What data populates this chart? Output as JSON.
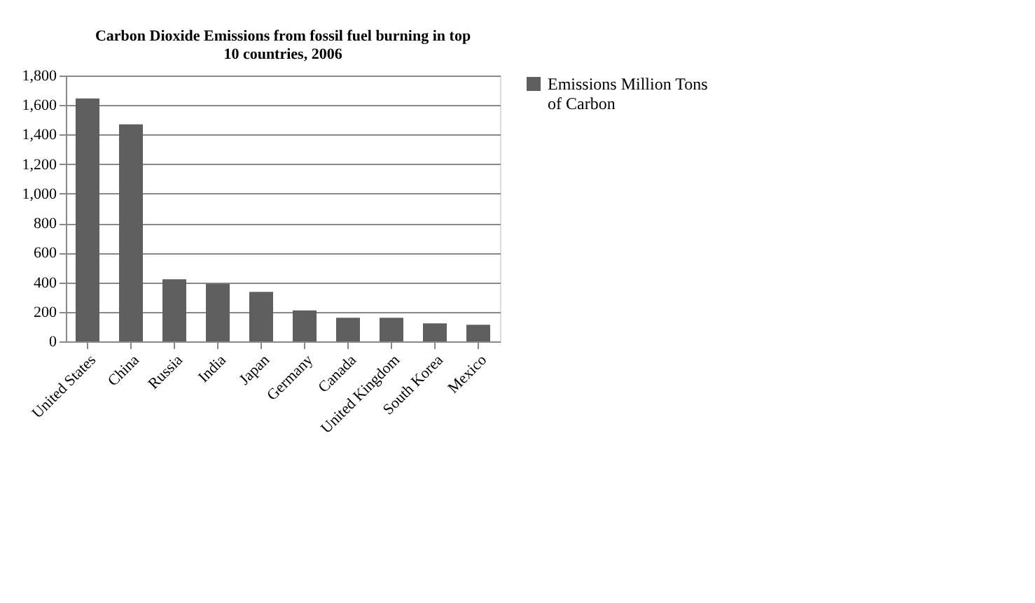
{
  "chart_data": {
    "type": "bar",
    "title": "Carbon Dioxide Emissions from fossil fuel burning in top 10 countries, 2006",
    "categories": [
      "United States",
      "China",
      "Russia",
      "India",
      "Japan",
      "Germany",
      "Canada",
      "United Kingdom",
      "South Korea",
      "Mexico"
    ],
    "series": [
      {
        "name": "Emissions Million Tons of Carbon",
        "color": "#5f5f5f",
        "values": [
          1645,
          1470,
          420,
          390,
          335,
          210,
          160,
          160,
          122,
          112
        ]
      }
    ],
    "ylim": [
      0,
      1800
    ],
    "yticks": [
      {
        "value": 0,
        "label": "0"
      },
      {
        "value": 200,
        "label": "200"
      },
      {
        "value": 400,
        "label": "400"
      },
      {
        "value": 600,
        "label": "600"
      },
      {
        "value": 800,
        "label": "800"
      },
      {
        "value": 1000,
        "label": "1,000"
      },
      {
        "value": 1200,
        "label": "1,200"
      },
      {
        "value": 1400,
        "label": "1,400"
      },
      {
        "value": 1600,
        "label": "1,600"
      },
      {
        "value": 1800,
        "label": "1,800"
      }
    ],
    "grid": "y",
    "legend": "right"
  }
}
